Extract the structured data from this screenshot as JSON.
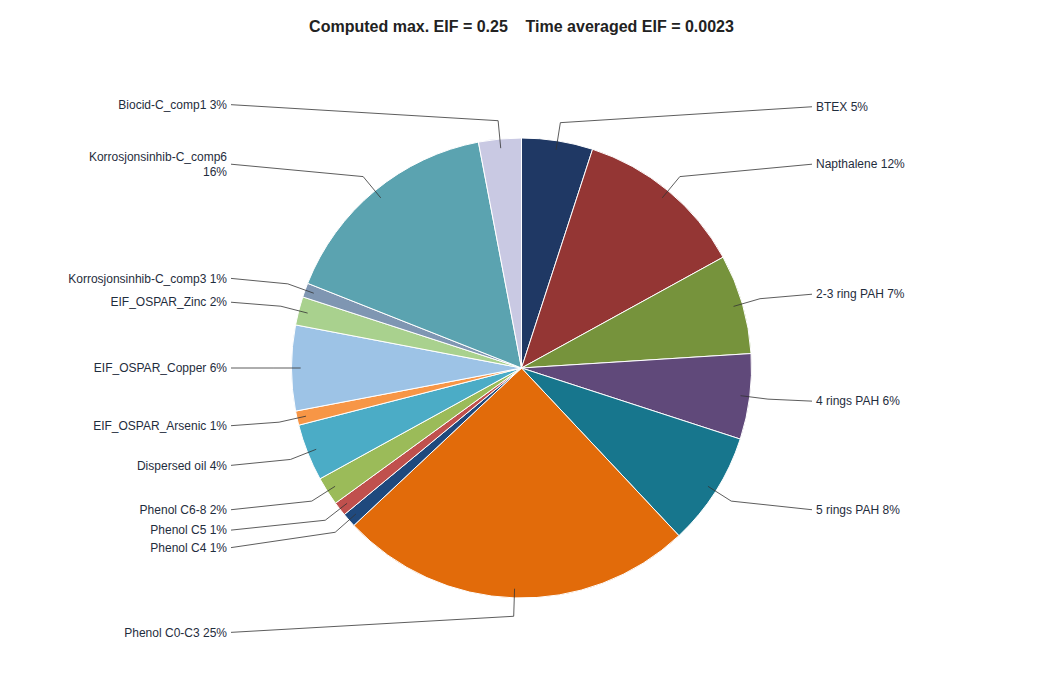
{
  "chart_data": {
    "type": "pie",
    "title": "Computed max. EIF = 0.25    Time averaged EIF = 0.0023",
    "categories": [
      "BTEX 5%",
      "Napthalene 12%",
      "2-3 ring PAH 7%",
      "4 rings PAH 6%",
      "5 rings PAH 8%",
      "Phenol C0-C3 25%",
      "Phenol C4 1%",
      "Phenol C5 1%",
      "Phenol C6-8 2%",
      "Dispersed oil 4%",
      "EIF_OSPAR_Arsenic 1%",
      "EIF_OSPAR_Copper 6%",
      "EIF_OSPAR_Zinc 2%",
      "Korrosjonsinhib-C_comp3 1%",
      "Korrosjonsinhib-C_comp6\n16%",
      "Biocid-C_comp1 3%"
    ],
    "values": [
      5,
      12,
      7,
      6,
      8,
      25,
      1,
      1,
      2,
      4,
      1,
      6,
      2,
      1,
      16,
      3
    ],
    "colors": [
      "#1F3864",
      "#943634",
      "#76933C",
      "#60497A",
      "#17768D",
      "#E26B0A",
      "#1F497D",
      "#C0504D",
      "#9BBB59",
      "#4BACC6",
      "#F79646",
      "#9DC3E6",
      "#A9D18E",
      "#7F96B2",
      "#5BA3B0",
      "#C9C9E3"
    ]
  }
}
